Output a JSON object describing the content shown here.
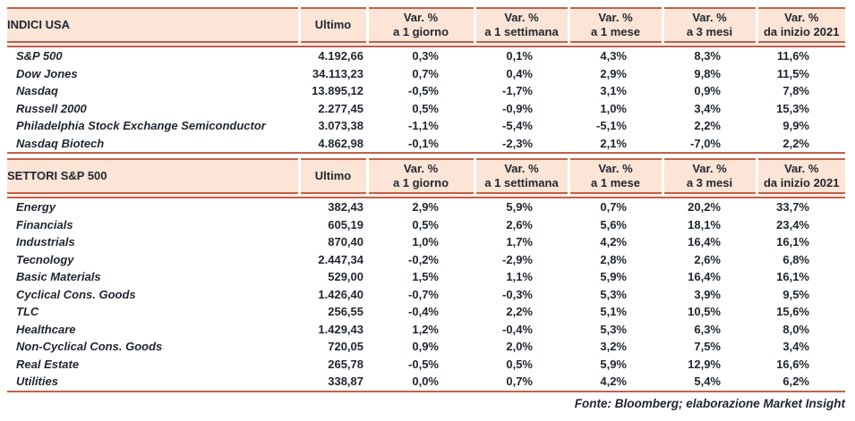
{
  "columns": {
    "value_label": "Ultimo",
    "var_label": "Var. %",
    "periods": [
      "a 1 giorno",
      "a 1 settimana",
      "a 1 mese",
      "a 3 mesi",
      "da inizio 2021"
    ]
  },
  "sections": [
    {
      "title": "INDICI USA",
      "rows": [
        {
          "name": "S&P 500",
          "ultimo": "4.192,66",
          "vars": [
            "0,3%",
            "0,1%",
            "4,3%",
            "8,3%",
            "11,6%"
          ]
        },
        {
          "name": "Dow Jones",
          "ultimo": "34.113,23",
          "vars": [
            "0,7%",
            "0,4%",
            "2,9%",
            "9,8%",
            "11,5%"
          ]
        },
        {
          "name": "Nasdaq",
          "ultimo": "13.895,12",
          "vars": [
            "-0,5%",
            "-1,7%",
            "3,1%",
            "0,9%",
            "7,8%"
          ]
        },
        {
          "name": "Russell 2000",
          "ultimo": "2.277,45",
          "vars": [
            "0,5%",
            "-0,9%",
            "1,0%",
            "3,4%",
            "15,3%"
          ]
        },
        {
          "name": "Philadelphia Stock Exchange Semiconductor",
          "ultimo": "3.073,38",
          "vars": [
            "-1,1%",
            "-5,4%",
            "-5,1%",
            "2,2%",
            "9,9%"
          ]
        },
        {
          "name": "Nasdaq Biotech",
          "ultimo": "4.862,98",
          "vars": [
            "-0,1%",
            "-2,3%",
            "2,1%",
            "-7,0%",
            "2,2%"
          ]
        }
      ]
    },
    {
      "title": "SETTORI S&P 500",
      "rows": [
        {
          "name": "Energy",
          "ultimo": "382,43",
          "vars": [
            "2,9%",
            "5,9%",
            "0,7%",
            "20,2%",
            "33,7%"
          ]
        },
        {
          "name": "Financials",
          "ultimo": "605,19",
          "vars": [
            "0,5%",
            "2,6%",
            "5,6%",
            "18,1%",
            "23,4%"
          ]
        },
        {
          "name": "Industrials",
          "ultimo": "870,40",
          "vars": [
            "1,0%",
            "1,7%",
            "4,2%",
            "16,4%",
            "16,1%"
          ]
        },
        {
          "name": "Tecnology",
          "ultimo": "2.447,34",
          "vars": [
            "-0,2%",
            "-2,9%",
            "2,8%",
            "2,6%",
            "6,8%"
          ]
        },
        {
          "name": "Basic Materials",
          "ultimo": "529,00",
          "vars": [
            "1,5%",
            "1,1%",
            "5,9%",
            "16,4%",
            "16,1%"
          ]
        },
        {
          "name": "Cyclical Cons. Goods",
          "ultimo": "1.426,40",
          "vars": [
            "-0,7%",
            "-0,3%",
            "5,3%",
            "3,9%",
            "9,5%"
          ]
        },
        {
          "name": "TLC",
          "ultimo": "256,55",
          "vars": [
            "-0,4%",
            "2,2%",
            "5,1%",
            "10,5%",
            "15,6%"
          ]
        },
        {
          "name": "Healthcare",
          "ultimo": "1.429,43",
          "vars": [
            "1,2%",
            "-0,4%",
            "5,3%",
            "6,3%",
            "8,0%"
          ]
        },
        {
          "name": "Non-Cyclical Cons. Goods",
          "ultimo": "720,05",
          "vars": [
            "0,9%",
            "2,0%",
            "3,2%",
            "7,5%",
            "3,4%"
          ]
        },
        {
          "name": "Real Estate",
          "ultimo": "265,78",
          "vars": [
            "-0,5%",
            "0,5%",
            "5,9%",
            "12,9%",
            "16,6%"
          ]
        },
        {
          "name": "Utilities",
          "ultimo": "338,87",
          "vars": [
            "0,0%",
            "0,7%",
            "4,2%",
            "5,4%",
            "6,2%"
          ]
        }
      ]
    }
  ],
  "footer": "Fonte: Bloomberg; elaborazione Market Insight",
  "colors": {
    "header_bg": "#fce4d6",
    "line": "#c4604b",
    "text": "#1f2630"
  }
}
